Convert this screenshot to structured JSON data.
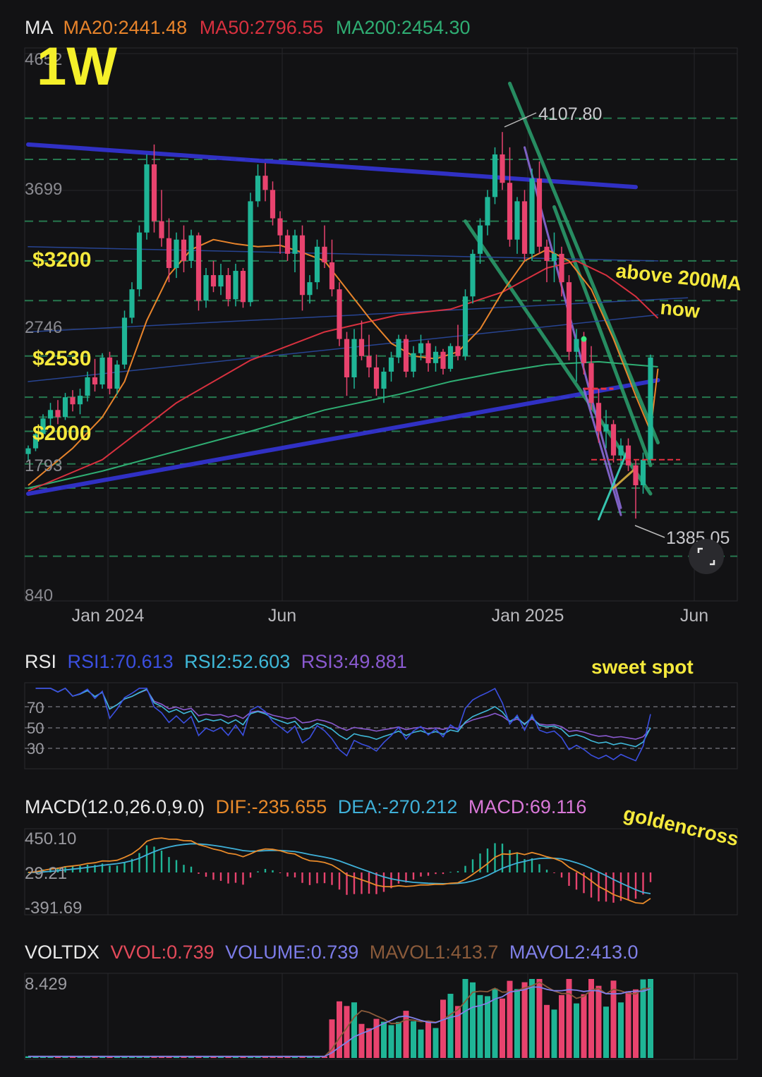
{
  "colors": {
    "bg": "#121214",
    "grid": "#26262a",
    "bull": "#1fb596",
    "bear": "#e8436e",
    "ma20": "#e8842b",
    "ma50": "#d8313f",
    "ma200": "#2fae73",
    "rsi1": "#3b4fe0",
    "rsi2": "#3fb8d8",
    "rsi3": "#8a5ad0",
    "dif": "#e88a2a",
    "dea": "#3fb0d8",
    "macd": "#d978d8",
    "vvol": "#e34a5a",
    "volume": "#7c7ce8",
    "mavol1": "#8a5a3a",
    "mavol2": "#8080e8",
    "channel": "#3434d8",
    "trend": "#2a9a6a",
    "level": "#2a8a5a",
    "annot": "#f5e93c",
    "lavender": "#8a6ad8",
    "cyan": "#3ad8c0",
    "gold": "#d8b040",
    "red_mark": "#e83040",
    "steel": "#2a4aa0"
  },
  "main": {
    "title": "MA",
    "ma20": "MA20:2441.48",
    "ma50": "MA50:2796.55",
    "ma200": "MA200:2454.30",
    "timeframe": "1W",
    "y_ticks": [
      "4652",
      "3699",
      "2746",
      "1793",
      "840"
    ],
    "x_ticks": [
      "Jan 2024",
      "Jun",
      "Jan 2025",
      "Jun"
    ],
    "high_label": "4107.80",
    "low_label": "1385.05",
    "price_labels": [
      "$3200",
      "$2530",
      "$2000"
    ],
    "annotations": [
      "above 200MA",
      "now"
    ]
  },
  "rsi": {
    "title": "RSI",
    "rsi1": "RSI1:70.613",
    "rsi2": "RSI2:52.603",
    "rsi3": "RSI3:49.881",
    "levels": [
      "70",
      "50",
      "30"
    ],
    "annotation": "sweet spot"
  },
  "macd": {
    "title": "MACD(12.0,26.0,9.0)",
    "dif": "DIF:-235.655",
    "dea": "DEA:-270.212",
    "macd": "MACD:69.116",
    "ticks": [
      "450.10",
      "29.21",
      "-391.69"
    ],
    "annotation": "goldencross"
  },
  "vol": {
    "title": "VOLTDX",
    "vvol": "VVOL:0.739",
    "volume": "VOLUME:0.739",
    "mavol1": "MAVOL1:413.7",
    "mavol2": "MAVOL2:413.0",
    "tick": "8.429"
  },
  "chart_data": {
    "type": "candlestick",
    "ohlc": [
      [
        1840,
        1900,
        1795,
        1880
      ],
      [
        1880,
        2000,
        1860,
        1980
      ],
      [
        1980,
        2120,
        1950,
        2090
      ],
      [
        2090,
        2200,
        2040,
        2150
      ],
      [
        2150,
        2220,
        2050,
        2100
      ],
      [
        2100,
        2270,
        2080,
        2240
      ],
      [
        2240,
        2290,
        2140,
        2190
      ],
      [
        2190,
        2300,
        2120,
        2250
      ],
      [
        2250,
        2420,
        2210,
        2380
      ],
      [
        2380,
        2510,
        2280,
        2330
      ],
      [
        2330,
        2550,
        2300,
        2520
      ],
      [
        2520,
        2560,
        2260,
        2300
      ],
      [
        2300,
        2500,
        2260,
        2470
      ],
      [
        2470,
        2850,
        2440,
        2800
      ],
      [
        2800,
        3050,
        2760,
        3000
      ],
      [
        3000,
        3450,
        2950,
        3400
      ],
      [
        3400,
        3950,
        3350,
        3880
      ],
      [
        3880,
        4020,
        3400,
        3480
      ],
      [
        3480,
        3700,
        3300,
        3360
      ],
      [
        3360,
        3500,
        3050,
        3150
      ],
      [
        3150,
        3400,
        3080,
        3350
      ],
      [
        3350,
        3450,
        3120,
        3200
      ],
      [
        3200,
        3420,
        3150,
        3380
      ],
      [
        3380,
        3400,
        2850,
        2920
      ],
      [
        2920,
        3150,
        2870,
        3100
      ],
      [
        3100,
        3200,
        2980,
        3020
      ],
      [
        3020,
        3180,
        2960,
        3100
      ],
      [
        3100,
        3150,
        2880,
        2930
      ],
      [
        2930,
        3180,
        2880,
        3130
      ],
      [
        3130,
        3150,
        2870,
        2910
      ],
      [
        2910,
        3680,
        2880,
        3620
      ],
      [
        3620,
        3880,
        3580,
        3800
      ],
      [
        3800,
        3890,
        3620,
        3700
      ],
      [
        3700,
        3760,
        3450,
        3500
      ],
      [
        3500,
        3550,
        3250,
        3380
      ],
      [
        3380,
        3420,
        3200,
        3250
      ],
      [
        3250,
        3420,
        3120,
        3380
      ],
      [
        3380,
        3450,
        2850,
        2960
      ],
      [
        2960,
        3100,
        2900,
        3050
      ],
      [
        3050,
        3350,
        3000,
        3300
      ],
      [
        3300,
        3450,
        3150,
        3190
      ],
      [
        3190,
        3350,
        2950,
        3000
      ],
      [
        3000,
        3050,
        2600,
        2650
      ],
      [
        2650,
        2700,
        2250,
        2380
      ],
      [
        2380,
        2720,
        2300,
        2650
      ],
      [
        2650,
        2780,
        2500,
        2530
      ],
      [
        2530,
        2680,
        2380,
        2450
      ],
      [
        2450,
        2540,
        2250,
        2300
      ],
      [
        2300,
        2450,
        2200,
        2420
      ],
      [
        2420,
        2560,
        2350,
        2520
      ],
      [
        2520,
        2680,
        2480,
        2650
      ],
      [
        2650,
        2680,
        2380,
        2420
      ],
      [
        2420,
        2600,
        2380,
        2550
      ],
      [
        2550,
        2680,
        2500,
        2620
      ],
      [
        2620,
        2640,
        2420,
        2480
      ],
      [
        2480,
        2600,
        2420,
        2560
      ],
      [
        2560,
        2580,
        2400,
        2440
      ],
      [
        2440,
        2620,
        2420,
        2600
      ],
      [
        2600,
        2750,
        2500,
        2530
      ],
      [
        2530,
        3000,
        2500,
        2950
      ],
      [
        2950,
        3280,
        2900,
        3250
      ],
      [
        3250,
        3500,
        3180,
        3450
      ],
      [
        3450,
        3700,
        3380,
        3650
      ],
      [
        3650,
        4000,
        3600,
        3950
      ],
      [
        3950,
        4107.8,
        3700,
        3750
      ],
      [
        3750,
        4000,
        3300,
        3350
      ],
      [
        3350,
        3650,
        3250,
        3620
      ],
      [
        3620,
        3700,
        3200,
        3250
      ],
      [
        3250,
        3850,
        3200,
        3780
      ],
      [
        3780,
        3900,
        3250,
        3300
      ],
      [
        3300,
        3350,
        3050,
        3200
      ],
      [
        3200,
        3400,
        3050,
        3250
      ],
      [
        3250,
        3300,
        2950,
        3050
      ],
      [
        3050,
        3100,
        2500,
        2560
      ],
      [
        2560,
        2720,
        2350,
        2650
      ],
      [
        2650,
        2700,
        2400,
        2480
      ],
      [
        2480,
        2600,
        2150,
        2200
      ],
      [
        2200,
        2300,
        1920,
        2000
      ],
      [
        2000,
        2150,
        1880,
        2050
      ],
      [
        2050,
        2080,
        1780,
        1830
      ],
      [
        1830,
        1950,
        1760,
        1900
      ],
      [
        1900,
        1950,
        1720,
        1760
      ],
      [
        1760,
        1800,
        1385.05,
        1620
      ],
      [
        1620,
        1850,
        1560,
        1800
      ],
      [
        1800,
        2540,
        1780,
        2520
      ]
    ],
    "ma20": [
      [
        0,
        1620
      ],
      [
        6,
        1880
      ],
      [
        10,
        2100
      ],
      [
        13,
        2350
      ],
      [
        16,
        2780
      ],
      [
        19,
        3100
      ],
      [
        22,
        3280
      ],
      [
        25,
        3350
      ],
      [
        28,
        3320
      ],
      [
        31,
        3300
      ],
      [
        34,
        3310
      ],
      [
        37,
        3260
      ],
      [
        40,
        3200
      ],
      [
        43,
        3000
      ],
      [
        46,
        2800
      ],
      [
        49,
        2620
      ],
      [
        52,
        2530
      ],
      [
        55,
        2510
      ],
      [
        58,
        2560
      ],
      [
        61,
        2720
      ],
      [
        64,
        2980
      ],
      [
        67,
        3200
      ],
      [
        70,
        3280
      ],
      [
        73,
        3200
      ],
      [
        76,
        3000
      ],
      [
        79,
        2650
      ],
      [
        82,
        2250
      ],
      [
        84,
        2000
      ],
      [
        85,
        2441.48
      ]
    ],
    "ma50": [
      [
        0,
        1580
      ],
      [
        10,
        1800
      ],
      [
        20,
        2200
      ],
      [
        30,
        2500
      ],
      [
        40,
        2700
      ],
      [
        50,
        2820
      ],
      [
        57,
        2860
      ],
      [
        64,
        2980
      ],
      [
        70,
        3150
      ],
      [
        74,
        3200
      ],
      [
        78,
        3100
      ],
      [
        82,
        2950
      ],
      [
        85,
        2796.55
      ]
    ],
    "ma200": [
      [
        0,
        1600
      ],
      [
        10,
        1720
      ],
      [
        20,
        1860
      ],
      [
        30,
        2000
      ],
      [
        40,
        2150
      ],
      [
        50,
        2260
      ],
      [
        57,
        2350
      ],
      [
        64,
        2420
      ],
      [
        70,
        2470
      ],
      [
        77,
        2490
      ],
      [
        85,
        2454.3
      ]
    ],
    "trendlines": [
      {
        "style": "channel",
        "pts": [
          [
            0,
            4020
          ],
          [
            82,
            3720
          ]
        ]
      },
      {
        "style": "channel",
        "pts": [
          [
            0,
            1560
          ],
          [
            85,
            2360
          ]
        ]
      },
      {
        "style": "trend",
        "pts": [
          [
            59,
            3480
          ],
          [
            84,
            1560
          ]
        ]
      },
      {
        "style": "trend",
        "pts": [
          [
            65,
            4450
          ],
          [
            85,
            1920
          ]
        ]
      },
      {
        "style": "trend",
        "pts": [
          [
            71,
            3580
          ],
          [
            84,
            1760
          ]
        ]
      },
      {
        "style": "lavender",
        "pts": [
          [
            67,
            4000
          ],
          [
            80,
            1460
          ]
        ]
      },
      {
        "style": "lavender",
        "pts": [
          [
            75,
            2300
          ],
          [
            80,
            1410
          ]
        ]
      },
      {
        "style": "cyan",
        "pts": [
          [
            77,
            1380
          ],
          [
            81,
            1880
          ]
        ]
      },
      {
        "style": "gold",
        "pts": [
          [
            79,
            1600
          ],
          [
            82,
            1740
          ]
        ]
      },
      {
        "style": "steel",
        "pts": [
          [
            0,
            3300
          ],
          [
            85,
            3200
          ]
        ]
      },
      {
        "style": "steel",
        "pts": [
          [
            0,
            2700
          ],
          [
            89,
            2940
          ]
        ]
      },
      {
        "style": "steel",
        "pts": [
          [
            0,
            2350
          ],
          [
            85,
            2820
          ]
        ]
      }
    ],
    "levels": [
      4205,
      3915,
      3480,
      3200,
      2920,
      2530,
      2240,
      2100,
      2000,
      1770,
      1600,
      1430,
      1120
    ]
  }
}
